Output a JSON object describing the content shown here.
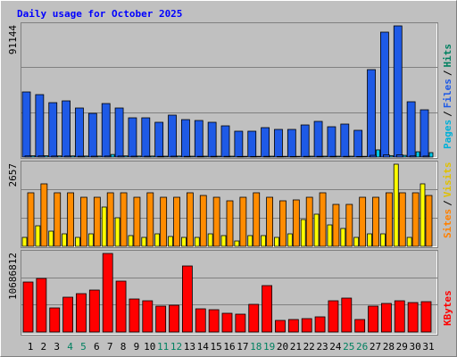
{
  "chart_data": {
    "type": "bar",
    "title": "Daily usage for October 2025",
    "categories": [
      "1",
      "2",
      "3",
      "4",
      "5",
      "6",
      "7",
      "8",
      "9",
      "10",
      "11",
      "12",
      "13",
      "14",
      "15",
      "16",
      "17",
      "18",
      "19",
      "20",
      "21",
      "22",
      "23",
      "24",
      "25",
      "26",
      "27",
      "28",
      "29",
      "30",
      "31"
    ],
    "weekend_categories": [
      "4",
      "5",
      "11",
      "12",
      "18",
      "19",
      "25",
      "26"
    ],
    "legend_separator": "/",
    "panels": [
      {
        "ylim": [
          0,
          91144
        ],
        "yticks": [
          91144
        ],
        "series": [
          {
            "name": "Hits",
            "color": "#1e5ae6",
            "label_color": "#008060",
            "values": [
              45260,
              43400,
              37820,
              39060,
              34100,
              30380,
              37200,
              34100,
              27280,
              27280,
              24180,
              29140,
              26040,
              25420,
              24180,
              21700,
              17980,
              17980,
              20460,
              19220,
              19220,
              22320,
              24800,
              21080,
              22940,
              18600,
              60760,
              86800,
              91144,
              38440,
              32860
            ]
          },
          {
            "name": "Files",
            "color": "#1e5ae6",
            "label_color": "#1e5ae6",
            "values": [
              800,
              800,
              700,
              700,
              600,
              600,
              700,
              700,
              600,
              600,
              500,
              600,
              500,
              500,
              500,
              500,
              400,
              400,
              500,
              400,
              400,
              500,
              500,
              500,
              500,
              400,
              1200,
              1500,
              1600,
              800,
              700
            ]
          },
          {
            "name": "Pages",
            "color": "#00c8e8",
            "label_color": "#00b0d8",
            "values": [
              900,
              900,
              800,
              800,
              700,
              700,
              1800,
              800,
              700,
              700,
              600,
              700,
              600,
              600,
              600,
              600,
              500,
              500,
              600,
              500,
              500,
              600,
              600,
              600,
              600,
              500,
              5000,
              1000,
              1200,
              3700,
              3100
            ]
          }
        ]
      },
      {
        "ylim": [
          0,
          2657
        ],
        "yticks": [
          2657
        ],
        "series": [
          {
            "name": "Visits",
            "color": "#ffff00",
            "label_color": "#e0c000",
            "values": [
              289,
              664,
              491,
              404,
              289,
              404,
              1271,
              924,
              347,
              289,
              404,
              318,
              289,
              289,
              404,
              347,
              173,
              347,
              347,
              289,
              404,
              866,
              1040,
              693,
              578,
              289,
              404,
              404,
              2657,
              289,
              2022
            ]
          },
          {
            "name": "Sites",
            "color": "#ff8c00",
            "label_color": "#ff8000",
            "values": [
              1733,
              2022,
              1733,
              1733,
              1588,
              1588,
              1733,
              1733,
              1588,
              1733,
              1588,
              1588,
              1733,
              1646,
              1588,
              1473,
              1588,
              1733,
              1588,
              1473,
              1502,
              1588,
              1733,
              1357,
              1357,
              1588,
              1588,
              1733,
              1733,
              1733,
              1646
            ]
          }
        ]
      },
      {
        "ylim": [
          0,
          10686812
        ],
        "yticks": [
          10686812
        ],
        "series": [
          {
            "name": "KBytes",
            "color": "#ff0000",
            "label_color": "#ff0000",
            "values": [
              6800700,
              7286500,
              3278900,
              4736200,
              5222000,
              5707700,
              10686812,
              6922100,
              4493300,
              4250400,
              3521800,
              3643200,
              8986600,
              3157500,
              3036000,
              2550300,
              2428800,
              3764700,
              6314900,
              1578700,
              1700200,
              1821600,
              2064500,
              4250400,
              4614800,
              1700200,
              3521800,
              3886100,
              4250400,
              4007600,
              4128900
            ]
          }
        ]
      }
    ]
  }
}
